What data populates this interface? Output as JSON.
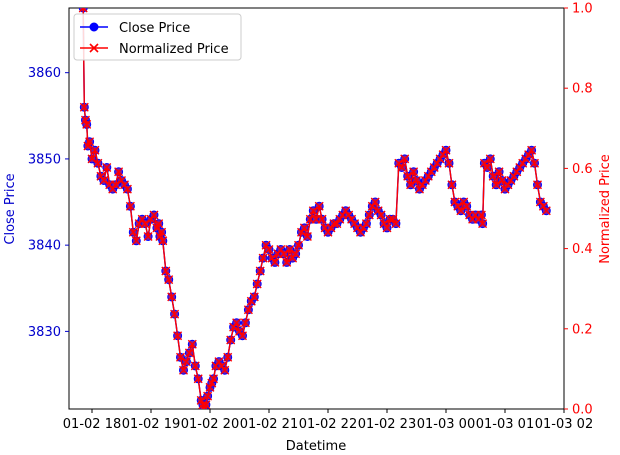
{
  "chart_data": {
    "type": "line",
    "xlabel": "Datetime",
    "ylabel_left": "Close Price",
    "ylabel_right": "Normalized Price",
    "x_tick_labels": [
      "01-02 18",
      "01-02 19",
      "01-02 20",
      "01-02 21",
      "01-02 22",
      "01-02 23",
      "01-03 00",
      "01-03 01",
      "01-03 02"
    ],
    "x_range_hours": [
      17.61,
      26.0
    ],
    "ylim_left": [
      3821.0,
      3867.5
    ],
    "yticks_left": [
      3830,
      3840,
      3850,
      3860
    ],
    "ylim_right": [
      0.0,
      1.0
    ],
    "yticks_right": [
      "0.0",
      "0.2",
      "0.4",
      "0.6",
      "0.8",
      "1.0"
    ],
    "colors": {
      "left_axis": "#0000cc",
      "right_axis": "#ff0000",
      "close": "#0000ff",
      "normalized": "#ff0000",
      "marker_face": "#7b1fa2"
    },
    "legend": {
      "placement": "top-left",
      "entries": [
        {
          "label": "Close Price",
          "color": "#0000ff",
          "marker": "circle"
        },
        {
          "label": "Normalized Price",
          "color": "#ff0000",
          "marker": "x"
        }
      ]
    },
    "series": [
      {
        "name": "Close Price",
        "axis": "left",
        "x_hours": [
          17.85,
          17.87,
          17.89,
          17.91,
          17.93,
          17.96,
          18.0,
          18.05,
          18.1,
          18.15,
          18.2,
          18.25,
          18.3,
          18.35,
          18.4,
          18.45,
          18.5,
          18.55,
          18.6,
          18.65,
          18.7,
          18.75,
          18.8,
          18.85,
          18.9,
          18.95,
          19.0,
          19.05,
          19.1,
          19.13,
          19.15,
          19.18,
          19.2,
          19.25,
          19.3,
          19.35,
          19.4,
          19.45,
          19.5,
          19.55,
          19.6,
          19.65,
          19.7,
          19.75,
          19.8,
          19.85,
          19.88,
          19.9,
          19.93,
          19.96,
          20.0,
          20.03,
          20.06,
          20.1,
          20.15,
          20.2,
          20.25,
          20.3,
          20.35,
          20.4,
          20.45,
          20.5,
          20.55,
          20.6,
          20.65,
          20.7,
          20.75,
          20.8,
          20.85,
          20.9,
          20.95,
          21.0,
          21.05,
          21.1,
          21.15,
          21.2,
          21.25,
          21.3,
          21.35,
          21.4,
          21.45,
          21.5,
          21.55,
          21.6,
          21.65,
          21.7,
          21.75,
          21.8,
          21.85,
          21.9,
          21.95,
          22.0,
          22.05,
          22.1,
          22.15,
          22.2,
          22.25,
          22.3,
          22.35,
          22.4,
          22.45,
          22.5,
          22.55,
          22.6,
          22.65,
          22.7,
          22.75,
          22.8,
          22.85,
          22.9,
          22.95,
          23.0,
          23.05,
          23.1,
          23.15,
          23.2,
          23.25,
          23.3,
          23.35,
          23.4,
          23.45,
          23.5,
          23.55,
          23.6,
          23.65,
          23.7,
          23.75,
          23.8,
          23.85,
          23.9,
          23.95,
          24.0,
          24.05,
          24.1,
          24.15,
          24.2,
          24.25,
          24.3,
          24.35,
          24.4,
          24.45,
          24.5,
          24.55,
          24.6,
          24.62,
          24.65,
          24.7,
          24.75,
          24.8,
          24.85,
          24.9,
          24.95,
          25.0,
          25.05,
          25.1,
          25.15,
          25.2,
          25.25,
          25.3,
          25.35,
          25.4,
          25.45,
          25.5,
          25.55,
          25.6,
          25.65,
          25.7
        ],
        "values": [
          3867.5,
          3856.0,
          3854.5,
          3854.0,
          3851.5,
          3852.0,
          3850.0,
          3851.0,
          3849.5,
          3848.0,
          3847.5,
          3849.0,
          3847.0,
          3846.5,
          3847.0,
          3848.5,
          3847.5,
          3847.0,
          3846.5,
          3844.5,
          3841.5,
          3840.5,
          3842.5,
          3843.0,
          3842.5,
          3841.0,
          3843.0,
          3843.5,
          3842.0,
          3842.5,
          3841.0,
          3841.5,
          3840.5,
          3837.0,
          3836.0,
          3834.0,
          3832.0,
          3829.5,
          3827.0,
          3825.5,
          3826.5,
          3827.5,
          3828.5,
          3826.0,
          3824.5,
          3822.0,
          3821.5,
          3821.0,
          3821.5,
          3822.5,
          3823.5,
          3824.0,
          3824.5,
          3826.0,
          3826.5,
          3826.0,
          3825.5,
          3827.0,
          3829.0,
          3830.5,
          3831.0,
          3830.0,
          3829.5,
          3831.0,
          3832.5,
          3833.5,
          3834.0,
          3835.5,
          3837.0,
          3838.5,
          3840.0,
          3839.5,
          3838.5,
          3838.0,
          3839.0,
          3839.5,
          3839.0,
          3838.0,
          3839.5,
          3838.5,
          3839.0,
          3840.0,
          3841.5,
          3842.0,
          3841.0,
          3843.0,
          3844.0,
          3843.0,
          3844.5,
          3843.0,
          3842.0,
          3841.5,
          3842.0,
          3842.5,
          3842.5,
          3843.0,
          3843.5,
          3844.0,
          3843.5,
          3843.0,
          3842.5,
          3842.0,
          3841.5,
          3842.0,
          3842.5,
          3843.5,
          3844.5,
          3845.0,
          3844.0,
          3843.5,
          3842.5,
          3842.0,
          3843.0,
          3843.0,
          3842.5,
          3849.5,
          3849.0,
          3850.0,
          3848.0,
          3847.0,
          3848.5,
          3847.5,
          3846.5,
          3847.0,
          3847.5,
          3848.0,
          3848.5,
          3849.0,
          3849.5,
          3850.0,
          3850.5,
          3851.0,
          3849.5,
          3847.0,
          3845.0,
          3844.5,
          3844.0,
          3845.0,
          3844.5,
          3843.5,
          3843.0,
          3843.5,
          3843.0,
          3843.5,
          3842.5,
          3849.5,
          3849.0,
          3850.0,
          3848.0,
          3847.0,
          3848.5,
          3847.5,
          3846.5,
          3847.0,
          3847.5,
          3848.0,
          3848.5,
          3849.0,
          3849.5,
          3850.0,
          3850.5,
          3851.0,
          3849.5,
          3847.0,
          3845.0,
          3844.5,
          3844.0
        ]
      },
      {
        "name": "Normalized Price",
        "axis": "right"
      }
    ]
  }
}
